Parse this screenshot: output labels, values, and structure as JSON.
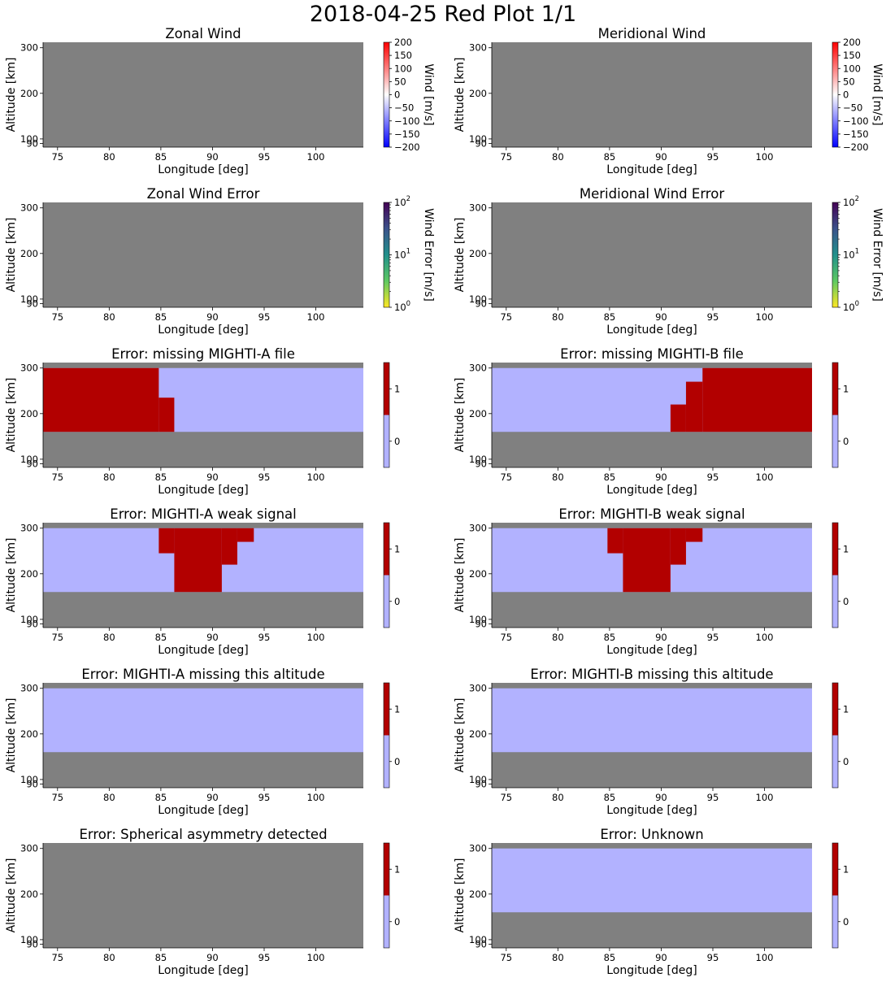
{
  "figure": {
    "suptitle": "2018-04-25 Red Plot 1/1"
  },
  "colors": {
    "nodata": "#808080",
    "flag_false": "#b2b2ff",
    "flag_true": "#b20000"
  },
  "chart_data": [
    {
      "type": "heatmap",
      "title": "Zonal Wind",
      "xlabel": "Longitude [deg]",
      "ylabel": "Altitude [km]",
      "xlim": [
        73.6,
        104.6
      ],
      "ylim": [
        82,
        312
      ],
      "xticks": [
        75,
        80,
        85,
        90,
        95,
        100
      ],
      "yticks": [
        90,
        100,
        200,
        300
      ],
      "colorbar": {
        "label": "Wind [m/s]",
        "scale": "linear",
        "colormap": "bwr",
        "range": [
          -200,
          200
        ],
        "ticks": [
          "200",
          "150",
          "100",
          "50",
          "0",
          "−50",
          "−100",
          "−150",
          "−200"
        ]
      },
      "data_present": false
    },
    {
      "type": "heatmap",
      "title": "Meridional Wind",
      "xlabel": "Longitude [deg]",
      "ylabel": "Altitude [km]",
      "xlim": [
        73.6,
        104.6
      ],
      "ylim": [
        82,
        312
      ],
      "xticks": [
        75,
        80,
        85,
        90,
        95,
        100
      ],
      "yticks": [
        90,
        100,
        200,
        300
      ],
      "colorbar": {
        "label": "Wind [m/s]",
        "scale": "linear",
        "colormap": "bwr",
        "range": [
          -200,
          200
        ],
        "ticks": [
          "200",
          "150",
          "100",
          "50",
          "0",
          "−50",
          "−100",
          "−150",
          "−200"
        ]
      },
      "data_present": false
    },
    {
      "type": "heatmap",
      "title": "Zonal Wind Error",
      "xlabel": "Longitude [deg]",
      "ylabel": "Altitude [km]",
      "xlim": [
        73.6,
        104.6
      ],
      "ylim": [
        82,
        312
      ],
      "xticks": [
        75,
        80,
        85,
        90,
        95,
        100
      ],
      "yticks": [
        90,
        100,
        200,
        300
      ],
      "colorbar": {
        "label": "Wind Error [m/s]",
        "scale": "log",
        "colormap": "viridis_r",
        "range": [
          1,
          100
        ],
        "ticks": [
          "10",
          "10",
          "10"
        ],
        "tick_exponents": [
          "2",
          "1",
          "0"
        ]
      },
      "data_present": false
    },
    {
      "type": "heatmap",
      "title": "Meridional Wind Error",
      "xlabel": "Longitude [deg]",
      "ylabel": "Altitude [km]",
      "xlim": [
        73.6,
        104.6
      ],
      "ylim": [
        82,
        312
      ],
      "xticks": [
        75,
        80,
        85,
        90,
        95,
        100
      ],
      "yticks": [
        90,
        100,
        200,
        300
      ],
      "colorbar": {
        "label": "Wind Error [m/s]",
        "scale": "log",
        "colormap": "viridis_r",
        "range": [
          1,
          100
        ],
        "ticks": [
          "10",
          "10",
          "10"
        ],
        "tick_exponents": [
          "2",
          "1",
          "0"
        ]
      },
      "data_present": false
    },
    {
      "type": "heatmap",
      "title": "Error: missing MIGHTI-A file",
      "xlabel": "Longitude [deg]",
      "ylabel": "Altitude [km]",
      "xlim": [
        73.6,
        104.6
      ],
      "ylim": [
        82,
        312
      ],
      "xticks": [
        75,
        80,
        85,
        90,
        95,
        100
      ],
      "yticks": [
        90,
        100,
        200,
        300
      ],
      "colorbar": {
        "scale": "binary",
        "ticks": [
          "1",
          "0"
        ]
      },
      "data_present": true,
      "data_altitude_range": [
        160,
        300
      ],
      "flag_cells": [
        {
          "lon": [
            73.6,
            84.8
          ],
          "alt": [
            160,
            300
          ],
          "value": 1
        },
        {
          "lon": [
            84.8,
            86.3
          ],
          "alt": [
            160,
            235
          ],
          "value": 1
        }
      ]
    },
    {
      "type": "heatmap",
      "title": "Error: missing MIGHTI-B file",
      "xlabel": "Longitude [deg]",
      "ylabel": "Altitude [km]",
      "xlim": [
        73.6,
        104.6
      ],
      "ylim": [
        82,
        312
      ],
      "xticks": [
        75,
        80,
        85,
        90,
        95,
        100
      ],
      "yticks": [
        90,
        100,
        200,
        300
      ],
      "colorbar": {
        "scale": "binary",
        "ticks": [
          "1",
          "0"
        ]
      },
      "data_present": true,
      "data_altitude_range": [
        160,
        300
      ],
      "flag_cells": [
        {
          "lon": [
            94.0,
            104.6
          ],
          "alt": [
            160,
            300
          ],
          "value": 1
        },
        {
          "lon": [
            92.4,
            94.0
          ],
          "alt": [
            160,
            270
          ],
          "value": 1
        },
        {
          "lon": [
            90.9,
            92.4
          ],
          "alt": [
            160,
            220
          ],
          "value": 1
        }
      ]
    },
    {
      "type": "heatmap",
      "title": "Error: MIGHTI-A weak signal",
      "xlabel": "Longitude [deg]",
      "ylabel": "Altitude [km]",
      "xlim": [
        73.6,
        104.6
      ],
      "ylim": [
        82,
        312
      ],
      "xticks": [
        75,
        80,
        85,
        90,
        95,
        100
      ],
      "yticks": [
        90,
        100,
        200,
        300
      ],
      "colorbar": {
        "scale": "binary",
        "ticks": [
          "1",
          "0"
        ]
      },
      "data_present": true,
      "data_altitude_range": [
        160,
        300
      ],
      "flag_cells": [
        {
          "lon": [
            84.8,
            86.3
          ],
          "alt": [
            245,
            300
          ],
          "value": 1
        },
        {
          "lon": [
            86.3,
            90.9
          ],
          "alt": [
            160,
            300
          ],
          "value": 1
        },
        {
          "lon": [
            90.9,
            92.4
          ],
          "alt": [
            220,
            300
          ],
          "value": 1
        },
        {
          "lon": [
            92.4,
            94.0
          ],
          "alt": [
            270,
            300
          ],
          "value": 1
        }
      ]
    },
    {
      "type": "heatmap",
      "title": "Error: MIGHTI-B weak signal",
      "xlabel": "Longitude [deg]",
      "ylabel": "Altitude [km]",
      "xlim": [
        73.6,
        104.6
      ],
      "ylim": [
        82,
        312
      ],
      "xticks": [
        75,
        80,
        85,
        90,
        95,
        100
      ],
      "yticks": [
        90,
        100,
        200,
        300
      ],
      "colorbar": {
        "scale": "binary",
        "ticks": [
          "1",
          "0"
        ]
      },
      "data_present": true,
      "data_altitude_range": [
        160,
        300
      ],
      "flag_cells": [
        {
          "lon": [
            84.8,
            86.3
          ],
          "alt": [
            245,
            300
          ],
          "value": 1
        },
        {
          "lon": [
            86.3,
            90.9
          ],
          "alt": [
            160,
            300
          ],
          "value": 1
        },
        {
          "lon": [
            90.9,
            92.4
          ],
          "alt": [
            220,
            300
          ],
          "value": 1
        },
        {
          "lon": [
            92.4,
            94.0
          ],
          "alt": [
            270,
            300
          ],
          "value": 1
        }
      ]
    },
    {
      "type": "heatmap",
      "title": "Error: MIGHTI-A missing this altitude",
      "xlabel": "Longitude [deg]",
      "ylabel": "Altitude [km]",
      "xlim": [
        73.6,
        104.6
      ],
      "ylim": [
        82,
        312
      ],
      "xticks": [
        75,
        80,
        85,
        90,
        95,
        100
      ],
      "yticks": [
        90,
        100,
        200,
        300
      ],
      "colorbar": {
        "scale": "binary",
        "ticks": [
          "1",
          "0"
        ]
      },
      "data_present": true,
      "data_altitude_range": [
        160,
        300
      ],
      "flag_cells": []
    },
    {
      "type": "heatmap",
      "title": "Error: MIGHTI-B missing this altitude",
      "xlabel": "Longitude [deg]",
      "ylabel": "Altitude [km]",
      "xlim": [
        73.6,
        104.6
      ],
      "ylim": [
        82,
        312
      ],
      "xticks": [
        75,
        80,
        85,
        90,
        95,
        100
      ],
      "yticks": [
        90,
        100,
        200,
        300
      ],
      "colorbar": {
        "scale": "binary",
        "ticks": [
          "1",
          "0"
        ]
      },
      "data_present": true,
      "data_altitude_range": [
        160,
        300
      ],
      "flag_cells": []
    },
    {
      "type": "heatmap",
      "title": "Error: Spherical asymmetry detected",
      "xlabel": "Longitude [deg]",
      "ylabel": "Altitude [km]",
      "xlim": [
        73.6,
        104.6
      ],
      "ylim": [
        82,
        312
      ],
      "xticks": [
        75,
        80,
        85,
        90,
        95,
        100
      ],
      "yticks": [
        90,
        100,
        200,
        300
      ],
      "colorbar": {
        "scale": "binary",
        "ticks": [
          "1",
          "0"
        ]
      },
      "data_present": false
    },
    {
      "type": "heatmap",
      "title": "Error: Unknown",
      "xlabel": "Longitude [deg]",
      "ylabel": "Altitude [km]",
      "xlim": [
        73.6,
        104.6
      ],
      "ylim": [
        82,
        312
      ],
      "xticks": [
        75,
        80,
        85,
        90,
        95,
        100
      ],
      "yticks": [
        90,
        100,
        200,
        300
      ],
      "colorbar": {
        "scale": "binary",
        "ticks": [
          "1",
          "0"
        ]
      },
      "data_present": true,
      "data_altitude_range": [
        160,
        300
      ],
      "flag_cells": []
    }
  ]
}
